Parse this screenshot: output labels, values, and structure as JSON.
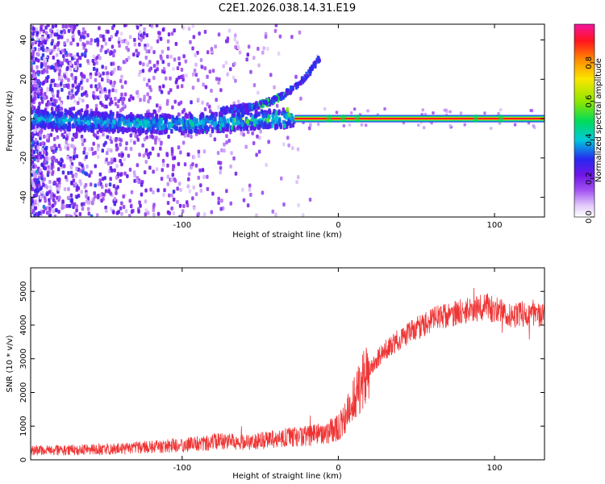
{
  "title": "C2E1.2026.038.14.31.E19",
  "colors": {
    "snr_line": "#ef3434",
    "carrier": "#e8242c",
    "axis": "#000000"
  },
  "chart_data": [
    {
      "type": "heatmap",
      "name": "spectrogram",
      "xlabel": "Height of straight line (km)",
      "ylabel": "Frequency (Hz)",
      "xlim": [
        -197,
        132
      ],
      "ylim": [
        -50,
        48
      ],
      "xticks": [
        -100,
        0,
        100
      ],
      "yticks": [
        -40,
        -20,
        0,
        20,
        40
      ],
      "features": {
        "carrier_frequency_hz": 0,
        "carrier_start_km": -28,
        "upper_branch": {
          "x": [
            -75,
            -55,
            -42,
            -33,
            -25,
            -18,
            -12
          ],
          "y": [
            4,
            6,
            9,
            13,
            18,
            24,
            31
          ]
        },
        "lower_band": {
          "x": [
            -197,
            -150,
            -100,
            -60,
            -35,
            -28
          ],
          "y": [
            0,
            -2,
            -3,
            -1,
            0,
            1
          ]
        }
      },
      "colorbar": {
        "label": "Normalized spectral amplitude",
        "range": [
          0.0,
          1.0
        ],
        "ticks": [
          0.0,
          0.2,
          0.4,
          0.6,
          0.8
        ]
      }
    },
    {
      "type": "line",
      "name": "snr",
      "xlabel": "Height of straight line (km)",
      "ylabel": "SNR (10 * v/v)",
      "xlim": [
        -197,
        132
      ],
      "ylim": [
        0,
        5700
      ],
      "xticks": [
        -100,
        0,
        100
      ],
      "yticks": [
        0,
        1000,
        2000,
        3000,
        4000,
        5000
      ],
      "series": [
        {
          "name": "SNR",
          "x": [
            -197,
            -180,
            -160,
            -140,
            -120,
            -100,
            -85,
            -75,
            -60,
            -50,
            -40,
            -30,
            -20,
            -10,
            0,
            5,
            10,
            15,
            20,
            25,
            30,
            35,
            40,
            45,
            50,
            55,
            60,
            65,
            70,
            75,
            80,
            85,
            90,
            95,
            100,
            105,
            110,
            115,
            120,
            125,
            132
          ],
          "y": [
            280,
            290,
            300,
            320,
            380,
            430,
            500,
            580,
            500,
            560,
            620,
            680,
            720,
            760,
            950,
            1300,
            1800,
            2300,
            2700,
            3000,
            3250,
            3450,
            3600,
            3750,
            3900,
            4000,
            4200,
            4250,
            4280,
            4350,
            4400,
            4420,
            4500,
            4550,
            4450,
            4400,
            4300,
            4300,
            4350,
            4300,
            4350
          ]
        }
      ]
    }
  ]
}
